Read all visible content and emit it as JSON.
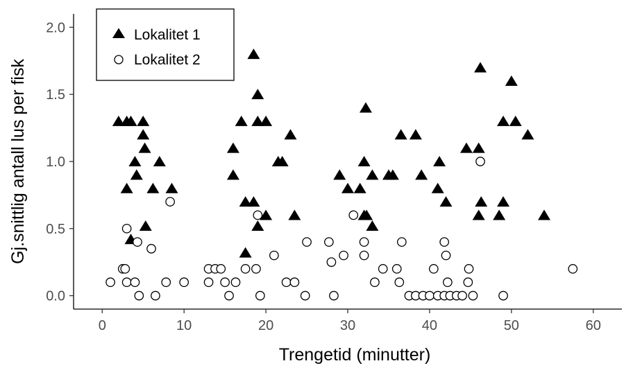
{
  "chart_data": {
    "type": "scatter",
    "xlabel": "Trengetid (minutter)",
    "ylabel": "Gj.snittlig antall lus per fisk",
    "xlim": [
      -3.5,
      63.5
    ],
    "ylim": [
      -0.1,
      2.1
    ],
    "xticks": [
      0,
      10,
      20,
      30,
      40,
      50,
      60
    ],
    "yticks": [
      0.0,
      0.5,
      1.0,
      1.5,
      2.0
    ],
    "xtick_labels": [
      "0",
      "10",
      "20",
      "30",
      "40",
      "50",
      "60"
    ],
    "ytick_labels": [
      "0.0",
      "0.5",
      "1.0",
      "1.5",
      "2.0"
    ],
    "grid": false,
    "legend_position": "top-left",
    "series": [
      {
        "name": "Lokalitet 1",
        "marker": "triangle",
        "color": "#000000",
        "points": [
          [
            2.0,
            1.3
          ],
          [
            3.0,
            1.3
          ],
          [
            3.5,
            1.3
          ],
          [
            5.0,
            1.3
          ],
          [
            5.0,
            1.2
          ],
          [
            5.2,
            1.1
          ],
          [
            4.0,
            1.0
          ],
          [
            7.0,
            1.0
          ],
          [
            4.2,
            0.9
          ],
          [
            3.0,
            0.8
          ],
          [
            6.2,
            0.8
          ],
          [
            8.5,
            0.8
          ],
          [
            5.3,
            0.52
          ],
          [
            3.5,
            0.42
          ],
          [
            18.5,
            1.8
          ],
          [
            19.0,
            1.5
          ],
          [
            17.0,
            1.3
          ],
          [
            19.0,
            1.3
          ],
          [
            20.0,
            1.3
          ],
          [
            16.0,
            1.1
          ],
          [
            21.5,
            1.0
          ],
          [
            22.0,
            1.0
          ],
          [
            16.0,
            0.9
          ],
          [
            17.5,
            0.7
          ],
          [
            18.5,
            0.7
          ],
          [
            23.0,
            1.2
          ],
          [
            20.0,
            0.6
          ],
          [
            19.0,
            0.52
          ],
          [
            17.5,
            0.32
          ],
          [
            23.5,
            0.6
          ],
          [
            29.0,
            0.9
          ],
          [
            30.0,
            0.8
          ],
          [
            31.5,
            0.8
          ],
          [
            32.0,
            1.0
          ],
          [
            33.0,
            0.9
          ],
          [
            35.0,
            0.9
          ],
          [
            35.5,
            0.9
          ],
          [
            32.2,
            1.4
          ],
          [
            36.5,
            1.2
          ],
          [
            38.3,
            1.2
          ],
          [
            39.0,
            0.9
          ],
          [
            32.0,
            0.6
          ],
          [
            32.3,
            0.6
          ],
          [
            33.0,
            0.52
          ],
          [
            41.0,
            0.8
          ],
          [
            41.2,
            1.0
          ],
          [
            42.0,
            0.7
          ],
          [
            44.5,
            1.1
          ],
          [
            46.0,
            1.1
          ],
          [
            46.2,
            1.7
          ],
          [
            46.3,
            0.7
          ],
          [
            46.0,
            0.6
          ],
          [
            49.0,
            1.3
          ],
          [
            50.0,
            1.6
          ],
          [
            50.5,
            1.3
          ],
          [
            52.0,
            1.2
          ],
          [
            48.5,
            0.6
          ],
          [
            49.0,
            0.7
          ],
          [
            54.0,
            0.6
          ]
        ]
      },
      {
        "name": "Lokalitet 2",
        "marker": "circle",
        "color": "#000000",
        "points": [
          [
            1.0,
            0.1
          ],
          [
            2.5,
            0.2
          ],
          [
            2.8,
            0.2
          ],
          [
            3.0,
            0.1
          ],
          [
            3.0,
            0.5
          ],
          [
            4.0,
            0.1
          ],
          [
            4.3,
            0.4
          ],
          [
            4.5,
            0.0
          ],
          [
            6.0,
            0.35
          ],
          [
            6.5,
            0.0
          ],
          [
            7.8,
            0.1
          ],
          [
            8.3,
            0.7
          ],
          [
            10.0,
            0.1
          ],
          [
            13.0,
            0.2
          ],
          [
            13.0,
            0.1
          ],
          [
            13.8,
            0.2
          ],
          [
            14.5,
            0.2
          ],
          [
            15.0,
            0.1
          ],
          [
            15.5,
            0.0
          ],
          [
            16.3,
            0.1
          ],
          [
            17.5,
            0.2
          ],
          [
            18.8,
            0.2
          ],
          [
            19.0,
            0.6
          ],
          [
            19.3,
            0.0
          ],
          [
            21.0,
            0.3
          ],
          [
            22.5,
            0.1
          ],
          [
            23.5,
            0.1
          ],
          [
            24.8,
            0.0
          ],
          [
            25.0,
            0.4
          ],
          [
            27.7,
            0.4
          ],
          [
            28.0,
            0.25
          ],
          [
            28.3,
            0.0
          ],
          [
            29.5,
            0.3
          ],
          [
            30.7,
            0.6
          ],
          [
            32.0,
            0.4
          ],
          [
            32.0,
            0.3
          ],
          [
            33.3,
            0.1
          ],
          [
            34.3,
            0.2
          ],
          [
            36.0,
            0.2
          ],
          [
            36.3,
            0.1
          ],
          [
            36.6,
            0.4
          ],
          [
            37.5,
            0.0
          ],
          [
            38.3,
            0.0
          ],
          [
            39.2,
            0.0
          ],
          [
            40.0,
            0.0
          ],
          [
            40.5,
            0.2
          ],
          [
            41.0,
            0.0
          ],
          [
            41.8,
            0.0
          ],
          [
            41.8,
            0.4
          ],
          [
            42.0,
            0.3
          ],
          [
            42.2,
            0.1
          ],
          [
            42.5,
            0.0
          ],
          [
            43.3,
            0.0
          ],
          [
            44.0,
            0.0
          ],
          [
            44.7,
            0.1
          ],
          [
            44.8,
            0.2
          ],
          [
            45.3,
            0.0
          ],
          [
            46.2,
            1.0
          ],
          [
            49.0,
            0.0
          ],
          [
            57.5,
            0.2
          ]
        ]
      }
    ]
  }
}
